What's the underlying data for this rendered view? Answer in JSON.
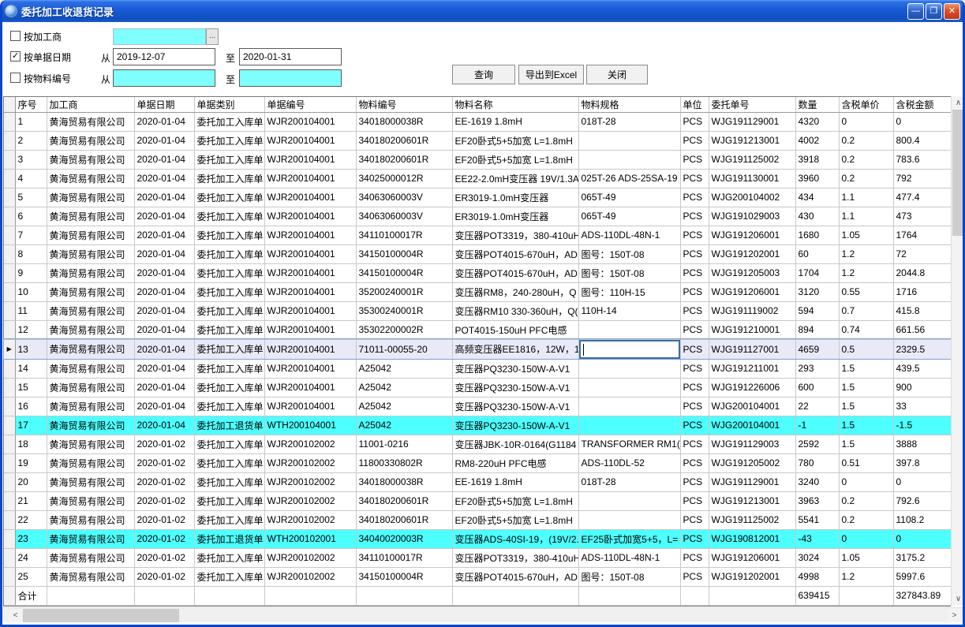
{
  "window": {
    "title": "委托加工收退货记录",
    "controls": {
      "minimize": "—",
      "maximize": "❐",
      "close": "✕"
    }
  },
  "filters": {
    "processor": {
      "label": "按加工商",
      "checked": false,
      "value": "",
      "browse_label": "..."
    },
    "date": {
      "label": "按单据日期",
      "checked": true,
      "check_glyph": "✓",
      "from_label": "从",
      "to_label": "至",
      "from_value": "2019-12-07",
      "to_value": "2020-01-31"
    },
    "material": {
      "label": "按物料编号",
      "checked": false,
      "from_label": "从",
      "to_label": "至",
      "from_value": "",
      "to_value": ""
    }
  },
  "toolbar": {
    "query_label": "查询",
    "export_label": "导出到Excel",
    "close_label": "关闭"
  },
  "table": {
    "columns": [
      "序号",
      "加工商",
      "单据日期",
      "单据类别",
      "单据编号",
      "物料编号",
      "物料名称",
      "物料规格",
      "单位",
      "委托单号",
      "数量",
      "含税单价",
      "含税金额"
    ],
    "rows": [
      [
        "1",
        "黄海贸易有限公司",
        "2020-01-04",
        "委托加工入库单",
        "WJR200104001",
        "34018000038R",
        "EE-1619 1.8mH",
        "018T-28",
        "PCS",
        "WJG191129001",
        "4320",
        "0",
        "0"
      ],
      [
        "2",
        "黄海贸易有限公司",
        "2020-01-04",
        "委托加工入库单",
        "WJR200104001",
        "340180200601R",
        "EF20卧式5+5加宽 L=1.8mH",
        "",
        "PCS",
        "WJG191213001",
        "4002",
        "0.2",
        "800.4"
      ],
      [
        "3",
        "黄海贸易有限公司",
        "2020-01-04",
        "委托加工入库单",
        "WJR200104001",
        "340180200601R",
        "EF20卧式5+5加宽 L=1.8mH",
        "",
        "PCS",
        "WJG191125002",
        "3918",
        "0.2",
        "783.6"
      ],
      [
        "4",
        "黄海贸易有限公司",
        "2020-01-04",
        "委托加工入库单",
        "WJR200104001",
        "34025000012R",
        "EE22-2.0mH变压器 19V/1.3A",
        "025T-26 ADS-25SA-19",
        "PCS",
        "WJG191130001",
        "3960",
        "0.2",
        "792"
      ],
      [
        "5",
        "黄海贸易有限公司",
        "2020-01-04",
        "委托加工入库单",
        "WJR200104001",
        "34063060003V",
        "ER3019-1.0mH变压器",
        "065T-49",
        "PCS",
        "WJG200104002",
        "434",
        "1.1",
        "477.4"
      ],
      [
        "6",
        "黄海贸易有限公司",
        "2020-01-04",
        "委托加工入库单",
        "WJR200104001",
        "34063060003V",
        "ER3019-1.0mH变压器",
        "065T-49",
        "PCS",
        "WJG191029003",
        "430",
        "1.1",
        "473"
      ],
      [
        "7",
        "黄海贸易有限公司",
        "2020-01-04",
        "委托加工入库单",
        "WJR200104001",
        "34110100017R",
        "变压器POT3319，380-410uH",
        "ADS-110DL-48N-1",
        "PCS",
        "WJG191206001",
        "1680",
        "1.05",
        "1764"
      ],
      [
        "8",
        "黄海贸易有限公司",
        "2020-01-04",
        "委托加工入库单",
        "WJR200104001",
        "34150100004R",
        "变压器POT4015-670uH，AD",
        "图号：150T-08",
        "PCS",
        "WJG191202001",
        "60",
        "1.2",
        "72"
      ],
      [
        "9",
        "黄海贸易有限公司",
        "2020-01-04",
        "委托加工入库单",
        "WJR200104001",
        "34150100004R",
        "变压器POT4015-670uH，AD",
        "图号：150T-08",
        "PCS",
        "WJG191205003",
        "1704",
        "1.2",
        "2044.8"
      ],
      [
        "10",
        "黄海贸易有限公司",
        "2020-01-04",
        "委托加工入库单",
        "WJR200104001",
        "35200240001R",
        "变压器RM8，240-280uH，Q",
        "图号：110H-15",
        "PCS",
        "WJG191206001",
        "3120",
        "0.55",
        "1716"
      ],
      [
        "11",
        "黄海贸易有限公司",
        "2020-01-04",
        "委托加工入库单",
        "WJR200104001",
        "35300240001R",
        "变压器RM10 330-360uH，Q(",
        "110H-14",
        "PCS",
        "WJG191119002",
        "594",
        "0.7",
        "415.8"
      ],
      [
        "12",
        "黄海贸易有限公司",
        "2020-01-04",
        "委托加工入库单",
        "WJR200104001",
        "35302200002R",
        "POT4015-150uH PFC电感",
        "",
        "PCS",
        "WJG191210001",
        "894",
        "0.74",
        "661.56"
      ],
      [
        "13",
        "黄海贸易有限公司",
        "2020-01-04",
        "委托加工入库单",
        "WJR200104001",
        "71011-00055-20",
        "高频变压器EE1816，12W，1",
        "",
        "PCS",
        "WJG191127001",
        "4659",
        "0.5",
        "2329.5"
      ],
      [
        "14",
        "黄海贸易有限公司",
        "2020-01-04",
        "委托加工入库单",
        "WJR200104001",
        "A25042",
        "变压器PQ3230-150W-A-V1",
        "",
        "PCS",
        "WJG191211001",
        "293",
        "1.5",
        "439.5"
      ],
      [
        "15",
        "黄海贸易有限公司",
        "2020-01-04",
        "委托加工入库单",
        "WJR200104001",
        "A25042",
        "变压器PQ3230-150W-A-V1",
        "",
        "PCS",
        "WJG191226006",
        "600",
        "1.5",
        "900"
      ],
      [
        "16",
        "黄海贸易有限公司",
        "2020-01-04",
        "委托加工入库单",
        "WJR200104001",
        "A25042",
        "变压器PQ3230-150W-A-V1",
        "",
        "PCS",
        "WJG200104001",
        "22",
        "1.5",
        "33"
      ],
      [
        "17",
        "黄海贸易有限公司",
        "2020-01-04",
        "委托加工退货单",
        "WTH200104001",
        "A25042",
        "变压器PQ3230-150W-A-V1",
        "",
        "PCS",
        "WJG200104001",
        "-1",
        "1.5",
        "-1.5"
      ],
      [
        "18",
        "黄海贸易有限公司",
        "2020-01-02",
        "委托加工入库单",
        "WJR200102002",
        "11001-0216",
        "变压器JBK-10R-0164(G1184",
        "TRANSFORMER RM1(",
        "PCS",
        "WJG191129003",
        "2592",
        "1.5",
        "3888"
      ],
      [
        "19",
        "黄海贸易有限公司",
        "2020-01-02",
        "委托加工入库单",
        "WJR200102002",
        "11800330802R",
        "RM8-220uH PFC电感",
        "ADS-110DL-52",
        "PCS",
        "WJG191205002",
        "780",
        "0.51",
        "397.8"
      ],
      [
        "20",
        "黄海贸易有限公司",
        "2020-01-02",
        "委托加工入库单",
        "WJR200102002",
        "34018000038R",
        "EE-1619 1.8mH",
        "018T-28",
        "PCS",
        "WJG191129001",
        "3240",
        "0",
        "0"
      ],
      [
        "21",
        "黄海贸易有限公司",
        "2020-01-02",
        "委托加工入库单",
        "WJR200102002",
        "340180200601R",
        "EF20卧式5+5加宽 L=1.8mH",
        "",
        "PCS",
        "WJG191213001",
        "3963",
        "0.2",
        "792.6"
      ],
      [
        "22",
        "黄海贸易有限公司",
        "2020-01-02",
        "委托加工入库单",
        "WJR200102002",
        "340180200601R",
        "EF20卧式5+5加宽 L=1.8mH",
        "",
        "PCS",
        "WJG191125002",
        "5541",
        "0.2",
        "1108.2"
      ],
      [
        "23",
        "黄海贸易有限公司",
        "2020-01-02",
        "委托加工退货单",
        "WTH200102001",
        "34040020003R",
        "变压器ADS-40SI-19，(19V/2.",
        "EF25卧式加宽5+5，L=",
        "PCS",
        "WJG190812001",
        "-43",
        "0",
        "0"
      ],
      [
        "24",
        "黄海贸易有限公司",
        "2020-01-02",
        "委托加工入库单",
        "WJR200102002",
        "34110100017R",
        "变压器POT3319，380-410uH",
        "ADS-110DL-48N-1",
        "PCS",
        "WJG191206001",
        "3024",
        "1.05",
        "3175.2"
      ],
      [
        "25",
        "黄海贸易有限公司",
        "2020-01-02",
        "委托加工入库单",
        "WJR200102002",
        "34150100004R",
        "变压器POT4015-670uH，AD",
        "图号：150T-08",
        "PCS",
        "WJG191202001",
        "4998",
        "1.2",
        "5997.6"
      ]
    ],
    "selected_row": 13,
    "selected_row_pointer": "▶",
    "highlighted_rows": [
      17,
      23
    ],
    "editing_cell": {
      "row": 13,
      "col": 7
    },
    "total_row": {
      "label": "合计",
      "quantity": "639415",
      "amount": "327843.89"
    }
  },
  "colors": {
    "titlebar_blue": "#1A5CD8",
    "input_cyan": "#80FFFF",
    "highlight_row_cyan": "#4DFFFF",
    "selected_row_lavender": "#E9E9F8",
    "edit_border_blue": "#3A6EA5",
    "grid_line": "#C8C8C8",
    "close_button_red": "#DD5226"
  }
}
